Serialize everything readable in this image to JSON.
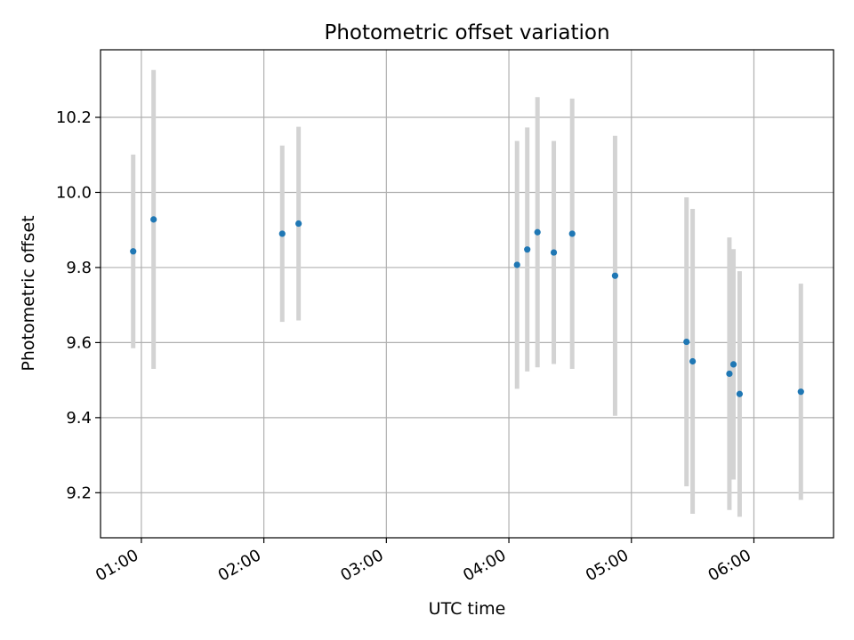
{
  "chart_data": {
    "type": "scatter",
    "title": "Photometric offset variation",
    "xlabel": "UTC time",
    "ylabel": "Photometric offset",
    "x_tick_labels": [
      "01:00",
      "02:00",
      "03:00",
      "04:00",
      "05:00",
      "06:00"
    ],
    "x_ticks": [
      "01:00",
      "02:00",
      "03:00",
      "04:00",
      "05:00",
      "06:00"
    ],
    "y_ticks": [
      9.2,
      9.4,
      9.6,
      9.8,
      10.0,
      10.2
    ],
    "y_tick_labels": [
      "9.2",
      "9.4",
      "9.6",
      "9.8",
      "10.0",
      "10.2"
    ],
    "xlim": [
      "00:40",
      "06:39"
    ],
    "ylim": [
      9.08,
      10.38
    ],
    "grid": true,
    "marker_color": "#1f77b4",
    "errorbar_color": "#d3d3d3",
    "series": [
      {
        "points": [
          {
            "x": "00:56",
            "y": 9.843,
            "yerr": 0.258
          },
          {
            "x": "01:06",
            "y": 9.928,
            "yerr": 0.398
          },
          {
            "x": "02:09",
            "y": 9.89,
            "yerr": 0.235
          },
          {
            "x": "02:17",
            "y": 9.917,
            "yerr": 0.258
          },
          {
            "x": "04:04",
            "y": 9.807,
            "yerr": 0.33
          },
          {
            "x": "04:09",
            "y": 9.848,
            "yerr": 0.325
          },
          {
            "x": "04:14",
            "y": 9.894,
            "yerr": 0.36
          },
          {
            "x": "04:22",
            "y": 9.84,
            "yerr": 0.297
          },
          {
            "x": "04:31",
            "y": 9.89,
            "yerr": 0.36
          },
          {
            "x": "04:52",
            "y": 9.778,
            "yerr": 0.373
          },
          {
            "x": "05:27",
            "y": 9.602,
            "yerr": 0.385
          },
          {
            "x": "05:30",
            "y": 9.55,
            "yerr": 0.406
          },
          {
            "x": "05:48",
            "y": 9.517,
            "yerr": 0.363
          },
          {
            "x": "05:50",
            "y": 9.542,
            "yerr": 0.307
          },
          {
            "x": "05:53",
            "y": 9.463,
            "yerr": 0.327
          },
          {
            "x": "06:23",
            "y": 9.469,
            "yerr": 0.288
          }
        ]
      }
    ]
  }
}
